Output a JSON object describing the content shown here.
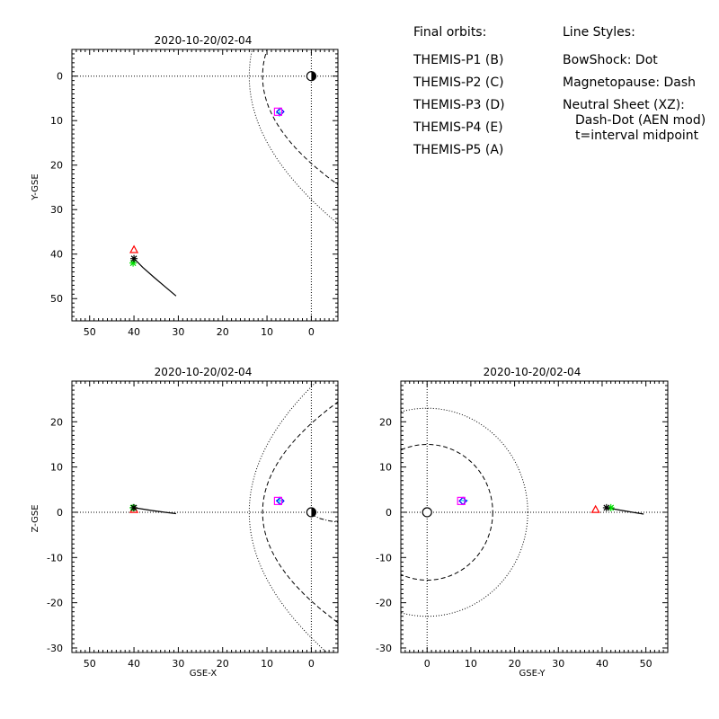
{
  "legend": {
    "orbits_title": "Final orbits:",
    "probes": [
      {
        "label": "THEMIS-P1 (B)",
        "color": "#ff0000"
      },
      {
        "label": "THEMIS-P2 (C)",
        "color": "#00e000"
      },
      {
        "label": "THEMIS-P3 (D)",
        "color": "#00e5e5"
      },
      {
        "label": "THEMIS-P4 (E)",
        "color": "#0000ff"
      },
      {
        "label": "THEMIS-P5 (A)",
        "color": "#ff00ff"
      }
    ],
    "styles_title": "Line Styles:",
    "styles": [
      "BowShock: Dot",
      "Magnetopause: Dash",
      "Neutral Sheet (XZ):",
      "Dash-Dot (AEN mod)",
      "t=interval midpoint"
    ]
  },
  "chart_data": [
    {
      "type": "scatter",
      "title": "2020-10-20/02-04",
      "xlabel": "",
      "ylabel": "Y-GSE",
      "xlim": [
        54,
        -6
      ],
      "ylim": [
        55,
        -6
      ],
      "xticks": [
        50,
        40,
        30,
        20,
        10,
        0
      ],
      "yticks": [
        0,
        10,
        20,
        30,
        40,
        50
      ],
      "probes": [
        {
          "name": "THEMIS-P1 (B)",
          "color": "#ff0000",
          "marker": "triangle",
          "x": 40,
          "y": 39
        },
        {
          "name": "THEMIS-P2 (C)",
          "color": "#00e000",
          "marker": "star",
          "x": 40.2,
          "y": 42
        },
        {
          "name": "THEMIS-P3 (D)",
          "color": "#00e5e5",
          "marker": "plus",
          "x": 7.2,
          "y": 8.3
        },
        {
          "name": "THEMIS-P4 (E)",
          "color": "#0000ff",
          "marker": "diamond",
          "x": 7,
          "y": 8
        },
        {
          "name": "THEMIS-P5 (A)",
          "color": "#ff00ff",
          "marker": "square",
          "x": 7.5,
          "y": 8
        }
      ],
      "track": [
        [
          40,
          41
        ],
        [
          38,
          43
        ],
        [
          35.5,
          45.2
        ],
        [
          33,
          47.3
        ],
        [
          30.5,
          49.4
        ]
      ],
      "track_start": [
        40,
        41
      ]
    },
    {
      "type": "scatter",
      "title": "2020-10-20/02-04",
      "xlabel": "GSE-X",
      "ylabel": "Z-GSE",
      "xlim": [
        54,
        -6
      ],
      "ylim": [
        -31,
        29
      ],
      "xticks": [
        50,
        40,
        30,
        20,
        10,
        0
      ],
      "yticks": [
        -30,
        -20,
        -10,
        0,
        10,
        20
      ],
      "probes": [
        {
          "name": "THEMIS-P1 (B)",
          "color": "#ff0000",
          "marker": "triangle",
          "x": 40,
          "y": 0.6
        },
        {
          "name": "THEMIS-P2 (C)",
          "color": "#00e000",
          "marker": "star",
          "x": 40.2,
          "y": 1.0
        },
        {
          "name": "THEMIS-P3 (D)",
          "color": "#00e5e5",
          "marker": "plus",
          "x": 7.2,
          "y": 2.6
        },
        {
          "name": "THEMIS-P4 (E)",
          "color": "#0000ff",
          "marker": "diamond",
          "x": 7,
          "y": 2.5
        },
        {
          "name": "THEMIS-P5 (A)",
          "color": "#ff00ff",
          "marker": "square",
          "x": 7.5,
          "y": 2.5
        }
      ],
      "track": [
        [
          40,
          1.0
        ],
        [
          36,
          0.4
        ],
        [
          33,
          0.0
        ],
        [
          30.5,
          -0.3
        ]
      ],
      "track_start": [
        40,
        1.0
      ],
      "neutral_sheet": [
        [
          0,
          -0.5
        ],
        [
          -2,
          -1.4
        ],
        [
          -4,
          -1.9
        ],
        [
          -6,
          -2.2
        ]
      ]
    },
    {
      "type": "scatter",
      "title": "2020-10-20/02-04",
      "xlabel": "GSE-Y",
      "ylabel": "",
      "xlim": [
        -6,
        55
      ],
      "ylim": [
        -31,
        29
      ],
      "xticks": [
        0,
        10,
        20,
        30,
        40,
        50
      ],
      "yticks": [
        -30,
        -20,
        -10,
        0,
        10,
        20
      ],
      "probes": [
        {
          "name": "THEMIS-P1 (B)",
          "color": "#ff0000",
          "marker": "triangle",
          "x": 38.5,
          "y": 0.6
        },
        {
          "name": "THEMIS-P2 (C)",
          "color": "#00e000",
          "marker": "star",
          "x": 42,
          "y": 1.0
        },
        {
          "name": "THEMIS-P3 (D)",
          "color": "#00e5e5",
          "marker": "plus",
          "x": 8.5,
          "y": 2.6
        },
        {
          "name": "THEMIS-P4 (E)",
          "color": "#0000ff",
          "marker": "diamond",
          "x": 8.2,
          "y": 2.5
        },
        {
          "name": "THEMIS-P5 (A)",
          "color": "#ff00ff",
          "marker": "square",
          "x": 7.8,
          "y": 2.5
        }
      ],
      "track": [
        [
          41,
          1.0
        ],
        [
          44,
          0.5
        ],
        [
          47,
          0.0
        ],
        [
          49.5,
          -0.4
        ]
      ],
      "track_start": [
        41,
        1.0
      ],
      "bowshock_radius": 23,
      "magnetopause_radius": 15
    }
  ]
}
